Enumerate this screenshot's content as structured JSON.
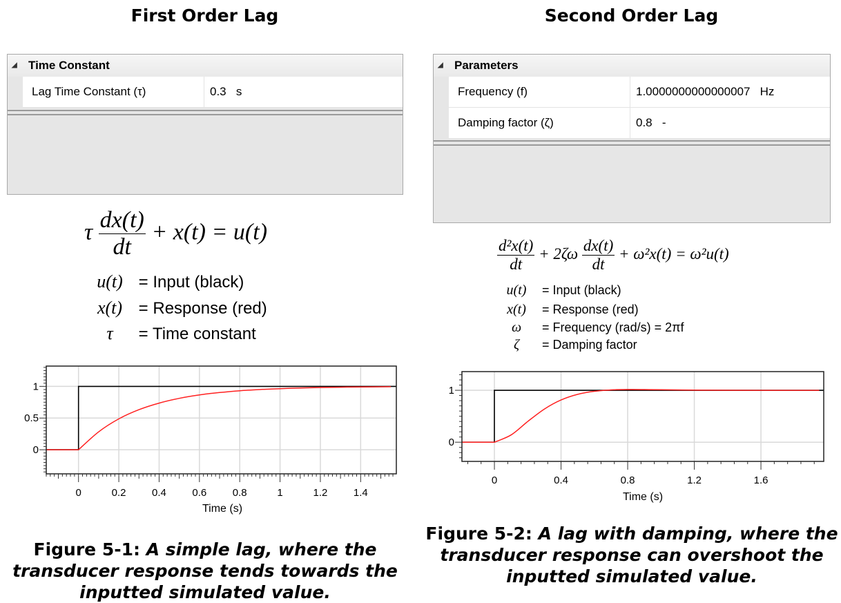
{
  "left": {
    "title": "First Order Lag",
    "panel": {
      "group": "Time Constant",
      "rows": [
        {
          "label": "Lag Time Constant (τ)",
          "value": "0.3",
          "unit": "s"
        }
      ]
    },
    "equation": {
      "tau": "τ",
      "num": "dx(t)",
      "den": "dt",
      "rest": "+ x(t) = u(t)"
    },
    "defs": [
      {
        "sym": "u(t)",
        "text": "= Input (black)"
      },
      {
        "sym": "x(t)",
        "text": "= Response (red)"
      },
      {
        "sym": "τ",
        "text": "= Time constant"
      }
    ],
    "caption": {
      "label": "Figure 5-1:",
      "text": "A simple lag, where the transducer response tends towards the inputted simulated value."
    }
  },
  "right": {
    "title": "Second Order Lag",
    "panel": {
      "group": "Parameters",
      "rows": [
        {
          "label": "Frequency (f)",
          "value": "1.0000000000000007",
          "unit": "Hz"
        },
        {
          "label": "Damping factor (ζ)",
          "value": "0.8",
          "unit": "-"
        }
      ]
    },
    "equation": {
      "num1": "d²x(t)",
      "den1": "dt",
      "mid": "+ 2ζω",
      "num2": "dx(t)",
      "den2": "dt",
      "rest": "+ ω²x(t) = ω²u(t)"
    },
    "defs": [
      {
        "sym": "u(t)",
        "text": "= Input (black)"
      },
      {
        "sym": "x(t)",
        "text": "= Response (red)"
      },
      {
        "sym": "ω",
        "text": "= Frequency (rad/s) = 2πf"
      },
      {
        "sym": "ζ",
        "text": "= Damping factor"
      }
    ],
    "caption": {
      "label": "Figure 5-2:",
      "text": "A lag with damping, where the transducer response can overshoot the inputted simulated value."
    }
  },
  "chart_data": [
    {
      "type": "line",
      "xlabel": "Time (s)",
      "ylabel": "",
      "xlim": [
        -0.16,
        1.577
      ],
      "ylim": [
        -0.38,
        1.32
      ],
      "xticks": [
        0,
        0.2,
        0.4,
        0.6,
        0.8,
        1,
        1.2,
        1.4
      ],
      "xtick_labels": [
        "0",
        "0.2",
        "0.4",
        "0.6",
        "0.8",
        "1",
        "1.2",
        "1.4"
      ],
      "yticks": [
        0,
        0.5,
        1
      ],
      "ytick_labels": [
        "0",
        "0.5",
        "1"
      ],
      "x_minor_step": 0.02,
      "y_minor_step": 0.05,
      "grid": true,
      "series": [
        {
          "color": "#000000",
          "x": [
            -0.16,
            0,
            0,
            1.577
          ],
          "y": [
            0,
            0,
            1,
            1
          ]
        },
        {
          "color": "#ff2020",
          "x": [
            -0.16,
            0,
            0.1,
            0.2,
            0.3,
            0.4,
            0.5,
            0.6,
            0.7,
            0.8,
            0.9,
            1.0,
            1.1,
            1.2,
            1.3,
            1.4,
            1.55
          ],
          "y": [
            0,
            0,
            0.283,
            0.487,
            0.632,
            0.736,
            0.811,
            0.865,
            0.903,
            0.931,
            0.95,
            0.964,
            0.974,
            0.982,
            0.987,
            0.991,
            0.994
          ]
        }
      ]
    },
    {
      "type": "line",
      "xlabel": "Time (s)",
      "ylabel": "",
      "xlim": [
        -0.195,
        1.977
      ],
      "ylim": [
        -0.37,
        1.36
      ],
      "xticks": [
        0,
        0.4,
        0.8,
        1.2,
        1.6
      ],
      "xtick_labels": [
        "0",
        "0.4",
        "0.8",
        "1.2",
        "1.6"
      ],
      "yticks": [
        0,
        1
      ],
      "ytick_labels": [
        "0",
        "1"
      ],
      "x_minor_step": 0.08,
      "y_minor_step": 0.1,
      "grid": true,
      "series": [
        {
          "color": "#000000",
          "x": [
            -0.195,
            0,
            0,
            1.977
          ],
          "y": [
            0,
            0,
            1,
            1
          ]
        },
        {
          "color": "#ff2020",
          "x": [
            -0.195,
            0,
            0.1,
            0.2,
            0.3,
            0.4,
            0.5,
            0.6,
            0.7,
            0.8,
            0.9,
            1.0,
            1.2,
            1.4,
            1.6,
            1.8,
            1.95
          ],
          "y": [
            0,
            0,
            0.14,
            0.399,
            0.639,
            0.813,
            0.922,
            0.981,
            1.007,
            1.015,
            1.014,
            1.01,
            1.004,
            1.001,
            1.0,
            1.0,
            1.0
          ]
        }
      ]
    }
  ]
}
